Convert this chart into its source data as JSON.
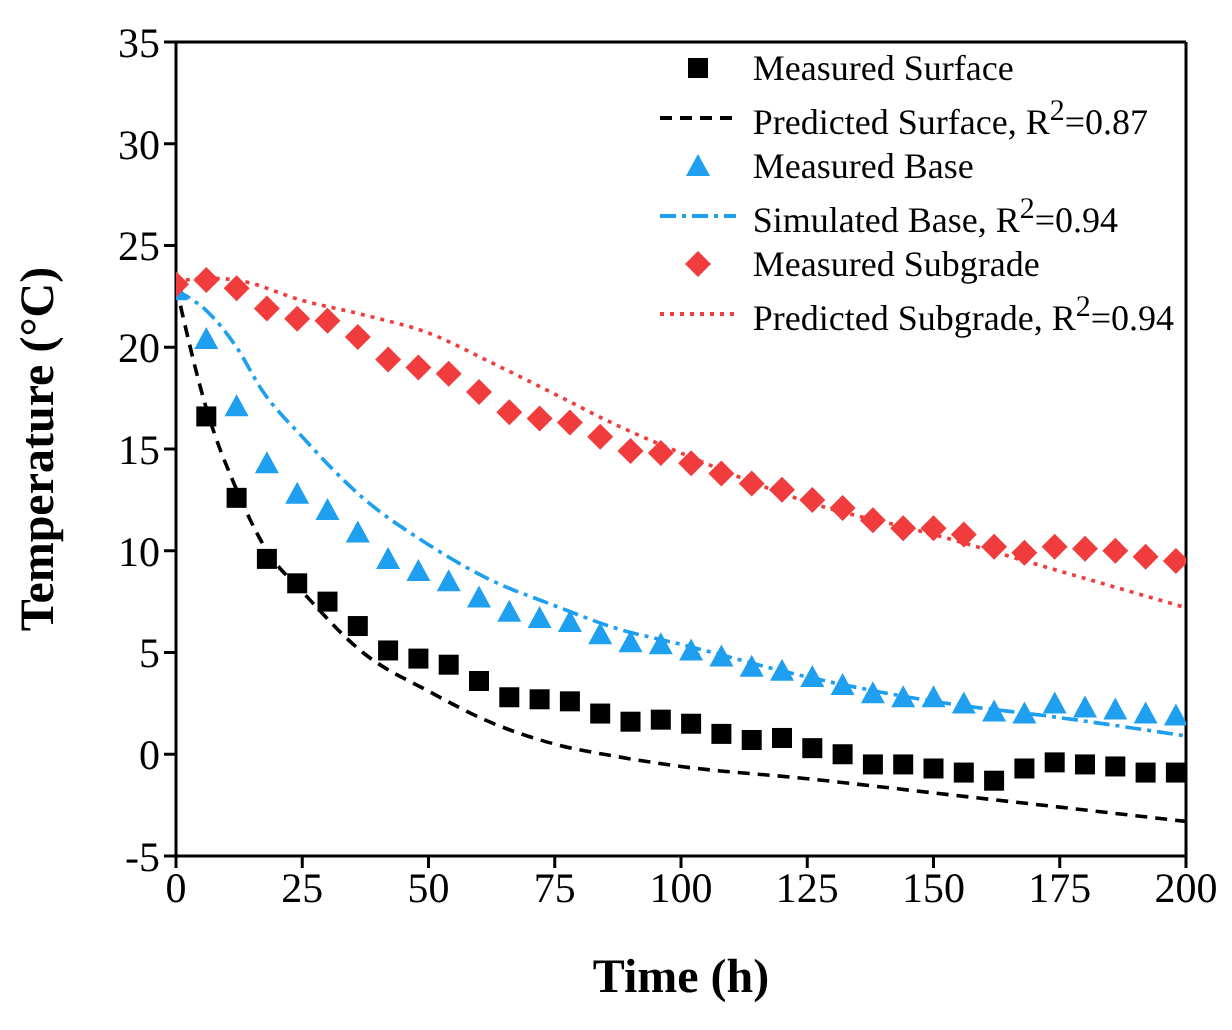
{
  "chart_data": {
    "type": "scatter",
    "xlabel": "Time (h)",
    "ylabel": "Temperature (°C)",
    "xlim": [
      0,
      200
    ],
    "ylim": [
      -5,
      35
    ],
    "xticks": [
      0,
      25,
      50,
      75,
      100,
      125,
      150,
      175,
      200
    ],
    "yticks": [
      -5,
      0,
      5,
      10,
      15,
      20,
      25,
      30,
      35
    ],
    "grid": false,
    "legend": "top right",
    "series": [
      {
        "name": "Measured Surface",
        "marker": "square",
        "color": "#000000",
        "x": [
          6,
          12,
          18,
          24,
          30,
          36,
          42,
          48,
          54,
          60,
          66,
          72,
          78,
          84,
          90,
          96,
          102,
          108,
          114,
          120,
          126,
          132,
          138,
          144,
          150,
          156,
          162,
          168,
          174,
          180,
          186,
          192,
          198
        ],
        "values": [
          16.6,
          12.6,
          9.6,
          8.4,
          7.5,
          6.3,
          5.1,
          4.7,
          4.4,
          3.6,
          2.8,
          2.7,
          2.6,
          2.0,
          1.6,
          1.7,
          1.5,
          1.0,
          0.7,
          0.8,
          0.3,
          0.0,
          -0.5,
          -0.5,
          -0.7,
          -0.9,
          -1.3,
          -0.7,
          -0.4,
          -0.5,
          -0.6,
          -0.9,
          -0.9
        ]
      },
      {
        "name": "Predicted Surface, R$^{2}$=0.87",
        "type": "line",
        "marker": "none",
        "line_style": "dashed",
        "color": "#000000",
        "x": [
          0,
          6,
          12,
          18,
          25,
          37,
          50,
          62,
          75,
          87,
          100,
          125,
          150,
          175,
          200
        ],
        "values": [
          23,
          17,
          13,
          10,
          8,
          5,
          3.1,
          1.6,
          0.5,
          -0.1,
          -0.6,
          -1.2,
          -1.9,
          -2.6,
          -3.3
        ]
      },
      {
        "name": "Measured Base",
        "marker": "triangle",
        "color": "#1e9ff0",
        "x": [
          0,
          6,
          12,
          18,
          24,
          30,
          36,
          42,
          48,
          54,
          60,
          66,
          72,
          78,
          84,
          90,
          96,
          102,
          108,
          114,
          120,
          126,
          132,
          138,
          144,
          150,
          156,
          162,
          168,
          174,
          180,
          186,
          192,
          198
        ],
        "values": [
          22.8,
          20.4,
          17.1,
          14.3,
          12.8,
          12.0,
          10.9,
          9.6,
          9.0,
          8.5,
          7.7,
          7.0,
          6.7,
          6.5,
          5.9,
          5.5,
          5.4,
          5.1,
          4.8,
          4.3,
          4.1,
          3.8,
          3.4,
          3.0,
          2.8,
          2.8,
          2.5,
          2.1,
          2.0,
          2.5,
          2.3,
          2.2,
          2.0,
          1.9
        ]
      },
      {
        "name": "Simulated Base, R$^{2}$=0.94",
        "type": "line",
        "marker": "none",
        "line_style": "dashdot",
        "color": "#1e9ff0",
        "x": [
          0,
          6,
          12,
          17,
          25,
          37,
          50,
          62,
          75,
          87,
          100,
          125,
          150,
          175,
          200
        ],
        "values": [
          22.8,
          21.8,
          20,
          17.9,
          15.6,
          12.6,
          10.3,
          8.6,
          7.3,
          6.2,
          5.4,
          3.8,
          2.6,
          1.8,
          0.9
        ]
      },
      {
        "name": "Measured Subgrade",
        "marker": "diamond",
        "color": "#f03c3c",
        "x": [
          0,
          6,
          12,
          18,
          24,
          30,
          36,
          42,
          48,
          54,
          60,
          66,
          72,
          78,
          84,
          90,
          96,
          102,
          108,
          114,
          120,
          126,
          132,
          138,
          144,
          150,
          156,
          162,
          168,
          174,
          180,
          186,
          192,
          198
        ],
        "values": [
          23.1,
          23.3,
          22.9,
          21.9,
          21.4,
          21.3,
          20.5,
          19.4,
          19.0,
          18.7,
          17.8,
          16.8,
          16.5,
          16.3,
          15.6,
          14.9,
          14.8,
          14.3,
          13.8,
          13.3,
          13.0,
          12.5,
          12.1,
          11.5,
          11.1,
          11.1,
          10.8,
          10.2,
          9.9,
          10.2,
          10.1,
          10.0,
          9.7,
          9.5
        ]
      },
      {
        "name": "Predicted Subgrade, R$^{2}$=0.94",
        "type": "line",
        "marker": "none",
        "line_style": "dotted",
        "color": "#f03c3c",
        "x": [
          0,
          6,
          12,
          25,
          37,
          50,
          62,
          75,
          87,
          100,
          125,
          150,
          175,
          200
        ],
        "values": [
          23.2,
          23.4,
          23.3,
          22.3,
          21.6,
          20.7,
          19.3,
          17.7,
          16.2,
          14.8,
          12.4,
          10.8,
          9.0,
          7.2
        ]
      }
    ]
  }
}
